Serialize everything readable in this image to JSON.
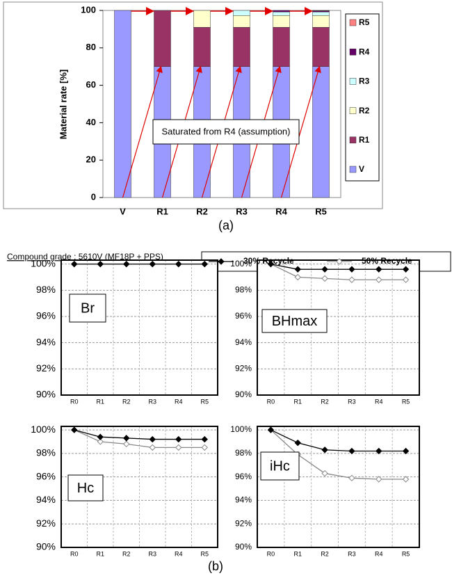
{
  "chart_data": [
    {
      "type": "bar",
      "stacked": true,
      "ylabel": "Material rate [%]",
      "caption": "(a)",
      "annotation": "Saturated from R4 (assumption)",
      "categories": [
        "V",
        "R1",
        "R2",
        "R3",
        "R4",
        "R5"
      ],
      "series": [
        {
          "name": "V",
          "color": "#9999ff",
          "values": [
            100,
            70,
            70,
            70,
            70,
            70
          ]
        },
        {
          "name": "R1",
          "color": "#993366",
          "values": [
            0,
            30,
            21,
            21,
            21,
            21
          ]
        },
        {
          "name": "R2",
          "color": "#ffffcc",
          "values": [
            0,
            0,
            9,
            6.3,
            6.3,
            6.3
          ]
        },
        {
          "name": "R3",
          "color": "#ccffff",
          "values": [
            0,
            0,
            0,
            2.7,
            1.9,
            1.9
          ]
        },
        {
          "name": "R4",
          "color": "#660066",
          "values": [
            0,
            0,
            0,
            0,
            0.8,
            0.6
          ]
        },
        {
          "name": "R5",
          "color": "#ff8080",
          "values": [
            0,
            0,
            0,
            0,
            0,
            0.2
          ]
        }
      ],
      "ylim": [
        0,
        100
      ],
      "yticks": [
        0,
        20,
        40,
        60,
        80,
        100
      ]
    },
    {
      "type": "line",
      "title": "Br",
      "categories": [
        "R0",
        "R1",
        "R2",
        "R3",
        "R4",
        "R5"
      ],
      "series": [
        {
          "values": [
            100,
            100,
            100,
            100,
            100,
            100
          ]
        },
        {
          "values": [
            100,
            100,
            100,
            100,
            100,
            100
          ]
        }
      ],
      "ylim": [
        90,
        100.3
      ],
      "grid": true,
      "yticks": [
        {
          "value": 90,
          "label": "90%"
        },
        {
          "value": 92,
          "label": "92%"
        },
        {
          "value": 94,
          "label": "94%"
        },
        {
          "value": 96,
          "label": "96%"
        },
        {
          "value": 98,
          "label": "98%"
        },
        {
          "value": 100,
          "label": "100%"
        }
      ]
    },
    {
      "type": "line",
      "title": "BHmax",
      "categories": [
        "R0",
        "R1",
        "R2",
        "R3",
        "R4",
        "R5"
      ],
      "series": [
        {
          "values": [
            100,
            99.6,
            99.6,
            99.6,
            99.6,
            99.6
          ]
        },
        {
          "values": [
            100,
            99.0,
            98.9,
            98.8,
            98.8,
            98.8
          ]
        }
      ],
      "ylim": [
        90,
        100.3
      ],
      "grid": true,
      "yticks": [
        {
          "value": 90,
          "label": "90%"
        },
        {
          "value": 92,
          "label": "92%"
        },
        {
          "value": 94,
          "label": "94%"
        },
        {
          "value": 96,
          "label": "96%"
        },
        {
          "value": 98,
          "label": "98%"
        },
        {
          "value": 100,
          "label": "100%"
        }
      ]
    },
    {
      "type": "line",
      "title": "Hc",
      "categories": [
        "R0",
        "R1",
        "R2",
        "R3",
        "R4",
        "R5"
      ],
      "series": [
        {
          "values": [
            100,
            99.4,
            99.3,
            99.2,
            99.2,
            99.2
          ]
        },
        {
          "values": [
            100,
            99.0,
            98.8,
            98.5,
            98.5,
            98.5
          ]
        }
      ],
      "ylim": [
        90,
        100.3
      ],
      "grid": true,
      "yticks": [
        {
          "value": 90,
          "label": "90%"
        },
        {
          "value": 92,
          "label": "92%"
        },
        {
          "value": 94,
          "label": "94%"
        },
        {
          "value": 96,
          "label": "96%"
        },
        {
          "value": 98,
          "label": "98%"
        },
        {
          "value": 100,
          "label": "100%"
        }
      ]
    },
    {
      "type": "line",
      "title": "iHc",
      "categories": [
        "R0",
        "R1",
        "R2",
        "R3",
        "R4",
        "R5"
      ],
      "series": [
        {
          "values": [
            100,
            98.9,
            98.3,
            98.2,
            98.2,
            98.2
          ]
        },
        {
          "values": [
            100,
            97.9,
            96.3,
            95.9,
            95.8,
            95.8
          ]
        }
      ],
      "ylim": [
        90,
        100.3
      ],
      "grid": true,
      "yticks": [
        {
          "value": 90,
          "label": "90%"
        },
        {
          "value": 92,
          "label": "92%"
        },
        {
          "value": 94,
          "label": "94%"
        },
        {
          "value": 96,
          "label": "96%"
        },
        {
          "value": 98,
          "label": "98%"
        },
        {
          "value": 100,
          "label": "100%"
        }
      ]
    }
  ],
  "panel_b": {
    "header": "Compound grade : 5610V (MF18P + PPS)",
    "caption": "(b)",
    "legend": [
      {
        "name": "30% Recycle",
        "color": "#000000",
        "marker_fill": "#000000"
      },
      {
        "name": "50% Recycle",
        "color": "#888888",
        "marker_fill": "#ffffff"
      }
    ]
  }
}
